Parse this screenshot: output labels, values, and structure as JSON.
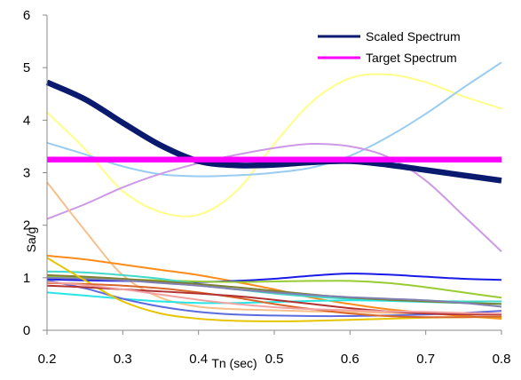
{
  "chart_data": {
    "type": "line",
    "title": "",
    "xlabel": "Tn (sec)",
    "ylabel": "Sa/g",
    "xlim": [
      0.2,
      0.8
    ],
    "ylim": [
      0,
      6
    ],
    "x_ticks": [
      "0.2",
      "0.3",
      "0.4",
      "0.5",
      "0.6",
      "0.7",
      "0.8"
    ],
    "y_ticks": [
      "0",
      "1",
      "2",
      "3",
      "4",
      "5",
      "6"
    ],
    "grid": false,
    "legend_position": "top-right",
    "series": [
      {
        "name": "Scaled Spectrum",
        "color": "#0A1A6E",
        "width": 6.5,
        "legend": true,
        "x": [
          0.2,
          0.25,
          0.3,
          0.35,
          0.4,
          0.45,
          0.5,
          0.55,
          0.6,
          0.65,
          0.7,
          0.75,
          0.8
        ],
        "y": [
          4.72,
          4.4,
          3.95,
          3.52,
          3.22,
          3.14,
          3.15,
          3.2,
          3.22,
          3.15,
          3.05,
          2.95,
          2.85
        ]
      },
      {
        "name": "Target Spectrum",
        "color": "#FF00FF",
        "width": 6.5,
        "legend": true,
        "x": [
          0.2,
          0.8
        ],
        "y": [
          3.25,
          3.25
        ]
      },
      {
        "color": "#FFFF88",
        "width": 2,
        "x": [
          0.2,
          0.25,
          0.3,
          0.35,
          0.4,
          0.45,
          0.5,
          0.55,
          0.6,
          0.65,
          0.7,
          0.75,
          0.8
        ],
        "y": [
          4.15,
          3.45,
          2.65,
          2.25,
          2.2,
          2.65,
          3.55,
          4.35,
          4.8,
          4.87,
          4.72,
          4.45,
          4.22
        ]
      },
      {
        "color": "#99CCF0",
        "width": 2,
        "x": [
          0.2,
          0.25,
          0.3,
          0.35,
          0.4,
          0.45,
          0.5,
          0.55,
          0.6,
          0.65,
          0.7,
          0.75,
          0.8
        ],
        "y": [
          3.57,
          3.35,
          3.12,
          2.97,
          2.93,
          2.95,
          3.0,
          3.1,
          3.32,
          3.68,
          4.12,
          4.62,
          5.1
        ]
      },
      {
        "color": "#CC99E6",
        "width": 2,
        "x": [
          0.2,
          0.25,
          0.3,
          0.35,
          0.4,
          0.45,
          0.5,
          0.55,
          0.6,
          0.65,
          0.7,
          0.75,
          0.8
        ],
        "y": [
          2.12,
          2.4,
          2.72,
          2.98,
          3.18,
          3.34,
          3.47,
          3.55,
          3.5,
          3.3,
          2.85,
          2.18,
          1.5
        ]
      },
      {
        "color": "#F7C08A",
        "width": 2,
        "x": [
          0.2,
          0.25,
          0.3,
          0.35,
          0.4,
          0.45,
          0.5,
          0.55,
          0.6,
          0.65,
          0.7,
          0.75,
          0.8
        ],
        "y": [
          2.82,
          1.9,
          1.05,
          0.62,
          0.45,
          0.4,
          0.38,
          0.36,
          0.35,
          0.33,
          0.32,
          0.3,
          0.3
        ]
      },
      {
        "color": "#FF8C1A",
        "width": 2,
        "x": [
          0.2,
          0.25,
          0.3,
          0.35,
          0.4,
          0.45,
          0.5,
          0.55,
          0.6,
          0.65,
          0.7,
          0.75,
          0.8
        ],
        "y": [
          1.42,
          1.35,
          1.25,
          1.15,
          1.05,
          0.92,
          0.78,
          0.62,
          0.5,
          0.4,
          0.33,
          0.27,
          0.22
        ]
      },
      {
        "color": "#1A1AE6",
        "width": 2,
        "x": [
          0.2,
          0.25,
          0.3,
          0.35,
          0.4,
          0.45,
          0.5,
          0.55,
          0.6,
          0.65,
          0.7,
          0.75,
          0.8
        ],
        "y": [
          0.97,
          0.95,
          0.94,
          0.93,
          0.92,
          0.94,
          0.98,
          1.04,
          1.08,
          1.06,
          1.02,
          0.98,
          0.96
        ]
      },
      {
        "color": "#99CC33",
        "width": 2,
        "x": [
          0.2,
          0.25,
          0.3,
          0.35,
          0.4,
          0.45,
          0.5,
          0.55,
          0.6,
          0.65,
          0.7,
          0.75,
          0.8
        ],
        "y": [
          1.03,
          1.0,
          0.97,
          0.95,
          0.93,
          0.92,
          0.93,
          0.94,
          0.94,
          0.9,
          0.82,
          0.72,
          0.62
        ]
      },
      {
        "color": "#40D9CC",
        "width": 2,
        "x": [
          0.2,
          0.25,
          0.3,
          0.35,
          0.4,
          0.45,
          0.5,
          0.55,
          0.6,
          0.65,
          0.7,
          0.75,
          0.8
        ],
        "y": [
          1.12,
          1.1,
          1.05,
          0.98,
          0.88,
          0.78,
          0.7,
          0.64,
          0.6,
          0.58,
          0.56,
          0.55,
          0.55
        ]
      },
      {
        "color": "#26E6E6",
        "width": 2,
        "x": [
          0.2,
          0.25,
          0.3,
          0.35,
          0.4,
          0.45,
          0.5,
          0.55,
          0.6,
          0.65,
          0.7,
          0.75,
          0.8
        ],
        "y": [
          0.72,
          0.66,
          0.6,
          0.55,
          0.52,
          0.52,
          0.54,
          0.56,
          0.57,
          0.56,
          0.54,
          0.52,
          0.5
        ]
      },
      {
        "color": "#7F7F33",
        "width": 2,
        "x": [
          0.2,
          0.25,
          0.3,
          0.35,
          0.4,
          0.45,
          0.5,
          0.55,
          0.6,
          0.65,
          0.7,
          0.75,
          0.8
        ],
        "y": [
          1.05,
          1.02,
          0.98,
          0.93,
          0.88,
          0.82,
          0.75,
          0.68,
          0.62,
          0.58,
          0.55,
          0.52,
          0.5
        ]
      },
      {
        "color": "#8080B3",
        "width": 2,
        "x": [
          0.2,
          0.25,
          0.3,
          0.35,
          0.4,
          0.45,
          0.5,
          0.55,
          0.6,
          0.65,
          0.7,
          0.75,
          0.8
        ],
        "y": [
          1.0,
          0.98,
          0.95,
          0.9,
          0.85,
          0.78,
          0.72,
          0.67,
          0.63,
          0.6,
          0.57,
          0.52,
          0.45
        ]
      },
      {
        "color": "#5B6CE0",
        "width": 2,
        "x": [
          0.2,
          0.25,
          0.3,
          0.35,
          0.4,
          0.45,
          0.5,
          0.55,
          0.6,
          0.65,
          0.7,
          0.75,
          0.8
        ],
        "y": [
          0.95,
          0.8,
          0.6,
          0.45,
          0.35,
          0.3,
          0.28,
          0.27,
          0.27,
          0.28,
          0.3,
          0.33,
          0.37
        ]
      },
      {
        "color": "#E6C400",
        "width": 2,
        "x": [
          0.2,
          0.25,
          0.3,
          0.35,
          0.4,
          0.45,
          0.5,
          0.55,
          0.6,
          0.65,
          0.7,
          0.75,
          0.8
        ],
        "y": [
          1.38,
          0.95,
          0.55,
          0.32,
          0.22,
          0.18,
          0.17,
          0.18,
          0.2,
          0.22,
          0.24,
          0.25,
          0.25
        ]
      },
      {
        "color": "#D9662B",
        "width": 2,
        "x": [
          0.2,
          0.25,
          0.3,
          0.35,
          0.4,
          0.45,
          0.5,
          0.55,
          0.6,
          0.65,
          0.7,
          0.75,
          0.8
        ],
        "y": [
          0.9,
          0.88,
          0.85,
          0.8,
          0.72,
          0.62,
          0.5,
          0.4,
          0.32,
          0.27,
          0.25,
          0.25,
          0.26
        ]
      },
      {
        "color": "#B33333",
        "width": 2,
        "x": [
          0.2,
          0.25,
          0.3,
          0.35,
          0.4,
          0.45,
          0.5,
          0.55,
          0.6,
          0.65,
          0.7,
          0.75,
          0.8
        ],
        "y": [
          0.85,
          0.82,
          0.78,
          0.74,
          0.7,
          0.65,
          0.58,
          0.5,
          0.42,
          0.36,
          0.32,
          0.3,
          0.3
        ]
      },
      {
        "color": "#F2A2A2",
        "width": 2,
        "x": [
          0.2,
          0.25,
          0.3,
          0.35,
          0.4,
          0.45,
          0.5,
          0.55,
          0.6,
          0.65,
          0.7,
          0.75,
          0.8
        ],
        "y": [
          0.92,
          0.86,
          0.78,
          0.68,
          0.58,
          0.5,
          0.44,
          0.4,
          0.38,
          0.36,
          0.35,
          0.33,
          0.32
        ]
      }
    ]
  }
}
